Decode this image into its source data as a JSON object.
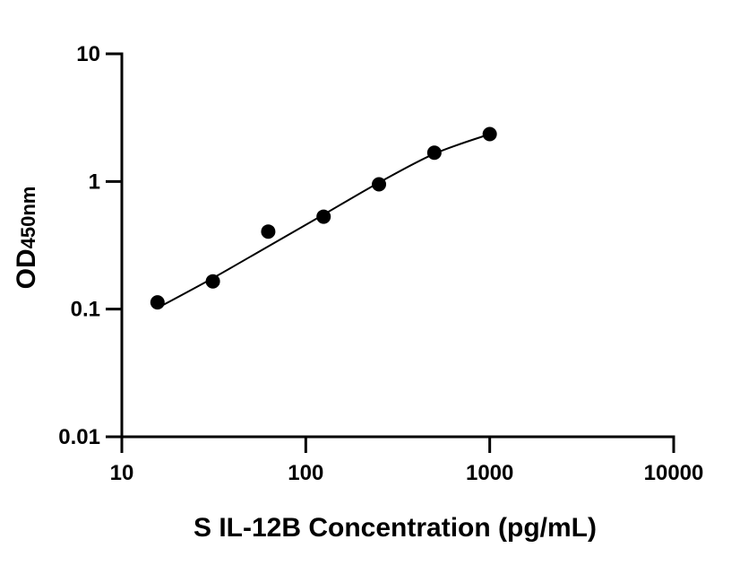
{
  "chart_data": {
    "type": "scatter",
    "title": "",
    "xlabel": "S IL-12B Concentration (pg/mL)",
    "ylabel": {
      "main": "OD",
      "subscript": "450nm"
    },
    "x_scale": "log",
    "y_scale": "log",
    "xlim": [
      10,
      10000
    ],
    "ylim": [
      0.01,
      10
    ],
    "x_ticks": [
      10,
      100,
      1000,
      10000
    ],
    "x_tick_labels": [
      "10",
      "100",
      "1000",
      "10000"
    ],
    "y_ticks": [
      0.01,
      0.1,
      1,
      10
    ],
    "y_tick_labels": [
      "0.01",
      "0.1",
      "1",
      "10"
    ],
    "grid": false,
    "legend": null,
    "series": [
      {
        "x": [
          15.625,
          31.25,
          62.5,
          125,
          250,
          500,
          1000
        ],
        "y": [
          0.113,
          0.165,
          0.405,
          0.53,
          0.95,
          1.68,
          2.35
        ]
      }
    ],
    "fit_curve": {
      "x": [
        15.625,
        31.25,
        62.5,
        125,
        250,
        500,
        1000
      ],
      "y": [
        0.102,
        0.175,
        0.31,
        0.55,
        0.98,
        1.65,
        2.35
      ]
    }
  }
}
